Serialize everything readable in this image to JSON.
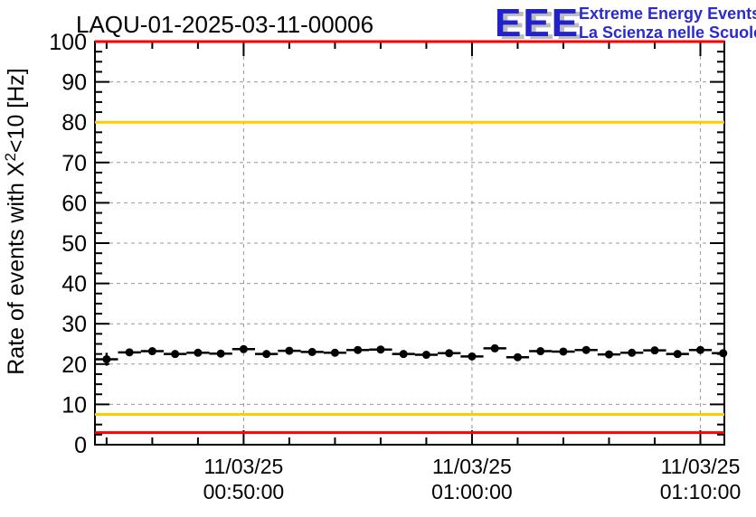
{
  "title": "LAQU-01-2025-03-11-00006",
  "logo": {
    "eee": "EEE",
    "line1": "Extreme Energy Events",
    "line2": "La Scienza nelle Scuole",
    "blue": "#2222cc",
    "shadow": "#bcbcbc"
  },
  "y_axis_title": {
    "pre": "Rate of events with X",
    "sup": "2",
    "post": "<10 [Hz]"
  },
  "chart_data": {
    "type": "scatter",
    "title": "LAQU-01-2025-03-11-00006",
    "xlabel": "",
    "ylabel": "Rate of events with X^2<10 [Hz]",
    "ylim": [
      0,
      100
    ],
    "xlim_minutes": [
      43.49,
      71.05
    ],
    "grid": true,
    "legend": "none",
    "y_major_ticks": [
      0,
      10,
      20,
      30,
      40,
      50,
      60,
      70,
      80,
      90,
      100
    ],
    "y_minor_step": 2.5,
    "x_minor_step_minutes": 2,
    "x_major_ticks": [
      {
        "minute": 50,
        "date": "11/03/25",
        "time": "00:50:00"
      },
      {
        "minute": 60,
        "date": "11/03/25",
        "time": "01:00:00"
      },
      {
        "minute": 70,
        "date": "11/03/25",
        "time": "01:10:00"
      }
    ],
    "threshold_lines": [
      {
        "value": 100,
        "color": "#ff0000"
      },
      {
        "value": 80,
        "color": "#ffcc00"
      },
      {
        "value": 7.5,
        "color": "#ffcc00"
      },
      {
        "value": 3,
        "color": "#ff0000"
      }
    ],
    "colors": {
      "marker": "#000000",
      "grid": "#999999",
      "frame": "#000000"
    },
    "points": [
      {
        "t": 44,
        "rate": 21.2,
        "xerr": 0.5,
        "yerr": 1.6
      },
      {
        "t": 45,
        "rate": 22.9,
        "xerr": 0.5,
        "yerr": 0.6
      },
      {
        "t": 46,
        "rate": 23.2,
        "xerr": 0.5,
        "yerr": 0.6
      },
      {
        "t": 47,
        "rate": 22.5,
        "xerr": 0.5,
        "yerr": 0.6
      },
      {
        "t": 48,
        "rate": 22.8,
        "xerr": 0.5,
        "yerr": 0.6
      },
      {
        "t": 49,
        "rate": 22.6,
        "xerr": 0.5,
        "yerr": 0.6
      },
      {
        "t": 50,
        "rate": 23.7,
        "xerr": 0.5,
        "yerr": 0.6
      },
      {
        "t": 51,
        "rate": 22.5,
        "xerr": 0.5,
        "yerr": 0.6
      },
      {
        "t": 52,
        "rate": 23.3,
        "xerr": 0.5,
        "yerr": 0.6
      },
      {
        "t": 53,
        "rate": 23.0,
        "xerr": 0.5,
        "yerr": 0.6
      },
      {
        "t": 54,
        "rate": 22.8,
        "xerr": 0.5,
        "yerr": 0.6
      },
      {
        "t": 55,
        "rate": 23.5,
        "xerr": 0.5,
        "yerr": 0.6
      },
      {
        "t": 56,
        "rate": 23.6,
        "xerr": 0.5,
        "yerr": 0.6
      },
      {
        "t": 57,
        "rate": 22.5,
        "xerr": 0.5,
        "yerr": 0.6
      },
      {
        "t": 58,
        "rate": 22.3,
        "xerr": 0.5,
        "yerr": 0.6
      },
      {
        "t": 59,
        "rate": 22.7,
        "xerr": 0.5,
        "yerr": 0.6
      },
      {
        "t": 60,
        "rate": 21.9,
        "xerr": 0.5,
        "yerr": 0.6
      },
      {
        "t": 61,
        "rate": 23.9,
        "xerr": 0.5,
        "yerr": 0.6
      },
      {
        "t": 62,
        "rate": 21.7,
        "xerr": 0.5,
        "yerr": 0.6
      },
      {
        "t": 63,
        "rate": 23.2,
        "xerr": 0.5,
        "yerr": 0.6
      },
      {
        "t": 64,
        "rate": 23.1,
        "xerr": 0.5,
        "yerr": 0.6
      },
      {
        "t": 65,
        "rate": 23.5,
        "xerr": 0.5,
        "yerr": 0.6
      },
      {
        "t": 66,
        "rate": 22.4,
        "xerr": 0.5,
        "yerr": 0.6
      },
      {
        "t": 67,
        "rate": 22.8,
        "xerr": 0.5,
        "yerr": 0.6
      },
      {
        "t": 68,
        "rate": 23.4,
        "xerr": 0.5,
        "yerr": 0.6
      },
      {
        "t": 69,
        "rate": 22.5,
        "xerr": 0.5,
        "yerr": 0.6
      },
      {
        "t": 70,
        "rate": 23.5,
        "xerr": 0.5,
        "yerr": 0.6
      },
      {
        "t": 71,
        "rate": 22.7,
        "xerr": 0.5,
        "yerr": 0.6
      }
    ]
  }
}
